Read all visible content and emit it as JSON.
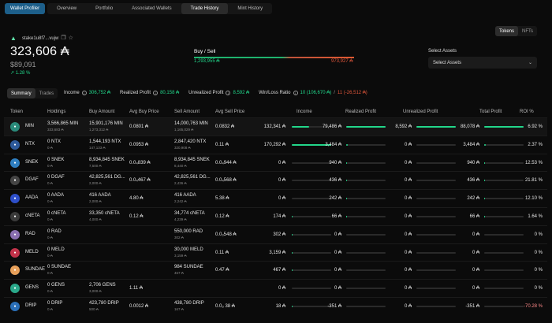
{
  "nav": {
    "profiler": "Wallet Profiler",
    "tabs": [
      "Overview",
      "Portfolio",
      "Associated Wallets",
      "Trade History",
      "Mint History"
    ]
  },
  "wallet": {
    "address": "stake1u8f7...vujw",
    "balance": "323,606 ₳",
    "usd": "$89,091",
    "change": "↗ 1.28 %"
  },
  "buysell": {
    "title": "Buy / Sell",
    "buy": "1,293,955 ₳",
    "sell": "973,927 ₳"
  },
  "assets": {
    "label": "Select Assets",
    "placeholder": "Select Assets"
  },
  "toggle": {
    "tokens": "Tokens",
    "nfts": "NFTs"
  },
  "summary": {
    "tabs": [
      "Summary",
      "Trades"
    ],
    "income_label": "Income",
    "income": "306,752 ₳",
    "realized_label": "Realized Profit",
    "realized": "80,158 ₳",
    "unrealized_label": "Unrealized Profit",
    "unrealized": "8,592 ₳",
    "winloss_label": "Win/Loss Ratio",
    "win": "10 (106,670 ₳)",
    "sep": "/",
    "loss": "11 (-26,512 ₳)"
  },
  "columns": [
    "Token",
    "Holdings",
    "Buy Amount",
    "Avg Buy Price",
    "Sell Amount",
    "Avg Sell Price",
    "Income",
    "Realized Profit",
    "Unrealized Profit",
    "Total Profit",
    "ROI %"
  ],
  "rows": [
    {
      "token": "MIN",
      "icon": "#2a8a7a",
      "hold": "3,566,865 MIN",
      "hold_sub": "333,683 ₳",
      "buy": "15,901,176 MIN",
      "buy_sub": "1,273,312 ₳",
      "avgbuy": "0.0801 ₳",
      "sell": "14,000,763 MIN",
      "sell_sub": "1,165,029 ₳",
      "avgsell": "0.0832 ₳",
      "income": "132,341 ₳",
      "inc_fill": 0.43,
      "real": "79,486 ₳",
      "real_fill": 0.99,
      "unreal": "8,592 ₳",
      "unreal_fill": 1,
      "total": "88,078 ₳",
      "total_fill": 1,
      "roi": "6.92 %"
    },
    {
      "token": "NTX",
      "icon": "#2e5a9a",
      "hold": "0 NTX",
      "hold_sub": "0 ₳",
      "buy": "1,544,193 NTX",
      "buy_sub": "147,133 ₳",
      "avgbuy": "0.0953 ₳",
      "sell": "2,847,420 NTX",
      "sell_sub": "320,908 ₳",
      "avgsell": "0.11 ₳",
      "income": "170,292 ₳",
      "inc_fill": 1,
      "real": "3,484 ₳",
      "real_fill": 0.04,
      "unreal": "0 ₳",
      "unreal_fill": 0,
      "total": "3,484 ₳",
      "total_fill": 0.04,
      "roi": "2.37 %"
    },
    {
      "token": "SNEK",
      "icon": "#2f7fc1",
      "hold": "0 SNEK",
      "hold_sub": "0 ₳",
      "buy": "8,934,845 SNEK",
      "buy_sub": "7,500 ₳",
      "avgbuy": "0.0₄839 ₳",
      "sell": "8,934,845 SNEK",
      "sell_sub": "8,440 ₳",
      "avgsell": "0.0₄944 ₳",
      "income": "0 ₳",
      "inc_fill": 0,
      "real": "940 ₳",
      "real_fill": 0.01,
      "unreal": "0 ₳",
      "unreal_fill": 0,
      "total": "940 ₳",
      "total_fill": 0.01,
      "roi": "12.53 %"
    },
    {
      "token": "DGAF",
      "icon": "#444444",
      "hold": "0 DGAF",
      "hold_sub": "0 ₳",
      "buy": "42,825,561 DG...",
      "buy_sub": "2,000 ₳",
      "avgbuy": "0.0₄467 ₳",
      "sell": "42,825,561 DG...",
      "sell_sub": "2,436 ₳",
      "avgsell": "0.0₄568 ₳",
      "income": "0 ₳",
      "inc_fill": 0,
      "real": "436 ₳",
      "real_fill": 0.005,
      "unreal": "0 ₳",
      "unreal_fill": 0,
      "total": "436 ₳",
      "total_fill": 0.005,
      "roi": "21.81 %"
    },
    {
      "token": "AADA",
      "icon": "#2e4fc9",
      "hold": "0 AADA",
      "hold_sub": "0 ₳",
      "buy": "416 AADA",
      "buy_sub": "2,000 ₳",
      "avgbuy": "4.80 ₳",
      "sell": "416 AADA",
      "sell_sub": "2,242 ₳",
      "avgsell": "5.38 ₳",
      "income": "0 ₳",
      "inc_fill": 0,
      "real": "242 ₳",
      "real_fill": 0.003,
      "unreal": "0 ₳",
      "unreal_fill": 0,
      "total": "242 ₳",
      "total_fill": 0.003,
      "roi": "12.10 %"
    },
    {
      "token": "cNETA",
      "icon": "#3a3a3a",
      "hold": "0 cNETA",
      "hold_sub": "0 ₳",
      "buy": "33,350 cNETA",
      "buy_sub": "4,000 ₳",
      "avgbuy": "0.12 ₳",
      "sell": "34,774 cNETA",
      "sell_sub": "4,239 ₳",
      "avgsell": "0.12 ₳",
      "income": "174 ₳",
      "inc_fill": 0.001,
      "real": "66 ₳",
      "real_fill": 0.001,
      "unreal": "0 ₳",
      "unreal_fill": 0,
      "total": "66 ₳",
      "total_fill": 0.001,
      "roi": "1.64 %"
    },
    {
      "token": "RAD",
      "icon": "#8a6fb0",
      "hold": "0 RAD",
      "hold_sub": "0 ₳",
      "buy": "",
      "buy_sub": "",
      "avgbuy": "",
      "sell": "550,000 RAD",
      "sell_sub": "302 ₳",
      "avgsell": "0.0₃548 ₳",
      "income": "302 ₳",
      "inc_fill": 0.002,
      "real": "0 ₳",
      "real_fill": 0,
      "unreal": "0 ₳",
      "unreal_fill": 0,
      "total": "0 ₳",
      "total_fill": 0,
      "roi": "0 %"
    },
    {
      "token": "MELD",
      "icon": "#c2334a",
      "hold": "0 MELD",
      "hold_sub": "0 ₳",
      "buy": "",
      "buy_sub": "",
      "avgbuy": "",
      "sell": "30,000 MELD",
      "sell_sub": "3,159 ₳",
      "avgsell": "0.11 ₳",
      "income": "3,159 ₳",
      "inc_fill": 0.02,
      "real": "0 ₳",
      "real_fill": 0,
      "unreal": "0 ₳",
      "unreal_fill": 0,
      "total": "0 ₳",
      "total_fill": 0,
      "roi": "0 %"
    },
    {
      "token": "SUNDAE",
      "icon": "#e8a05a",
      "hold": "0 SUNDAE",
      "hold_sub": "0 ₳",
      "buy": "",
      "buy_sub": "",
      "avgbuy": "",
      "sell": "984 SUNDAE",
      "sell_sub": "467 ₳",
      "avgsell": "0.47 ₳",
      "income": "467 ₳",
      "inc_fill": 0.003,
      "real": "0 ₳",
      "real_fill": 0,
      "unreal": "0 ₳",
      "unreal_fill": 0,
      "total": "0 ₳",
      "total_fill": 0,
      "roi": "0 %"
    },
    {
      "token": "GENS",
      "icon": "#2aa88a",
      "hold": "0 GENS",
      "hold_sub": "0 ₳",
      "buy": "2,706 GENS",
      "buy_sub": "3,000 ₳",
      "avgbuy": "1.11 ₳",
      "sell": "",
      "sell_sub": "",
      "avgsell": "",
      "income": "0 ₳",
      "inc_fill": 0,
      "real": "0 ₳",
      "real_fill": 0,
      "unreal": "0 ₳",
      "unreal_fill": 0,
      "total": "0 ₳",
      "total_fill": 0,
      "roi": "0 %"
    },
    {
      "token": "DRIP",
      "icon": "#2a6fb8",
      "hold": "0 DRIP",
      "hold_sub": "0 ₳",
      "buy": "423,780 DRIP",
      "buy_sub": "500 ₳",
      "avgbuy": "0.0012 ₳",
      "sell": "438,780 DRIP",
      "sell_sub": "167 ₳",
      "avgsell": "0.0₃ 38 ₳",
      "income": "18 ₳",
      "inc_fill": 0.0001,
      "real": "-351 ₳",
      "real_fill": 0,
      "unreal": "0 ₳",
      "unreal_fill": 0,
      "total": "-351 ₳",
      "total_fill": 0,
      "roi": "-70.28 %"
    }
  ]
}
